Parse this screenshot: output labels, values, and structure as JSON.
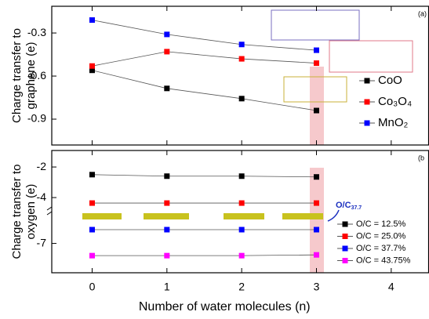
{
  "chart_data": [
    {
      "type": "line",
      "panel_label": "(a)",
      "ylabel": [
        "Charge transfer to",
        "graphene (e)"
      ],
      "x": [
        0,
        1,
        2,
        3
      ],
      "xlim": [
        -0.54,
        4.5
      ],
      "xticks": [
        0,
        1,
        2,
        3,
        4
      ],
      "ylim": [
        -1.08,
        -0.114
      ],
      "yticks": [
        -0.3,
        -0.6,
        -0.9
      ],
      "series": [
        {
          "name": "CoO",
          "color": "#000000",
          "values": [
            -0.56,
            -0.686,
            -0.757,
            -0.84
          ]
        },
        {
          "name": "Co₃O₄",
          "color": "#ff0000",
          "values": [
            -0.53,
            -0.43,
            -0.48,
            -0.51
          ]
        },
        {
          "name": "MnO₂",
          "color": "#0000ff",
          "values": [
            -0.21,
            -0.31,
            -0.38,
            -0.42
          ]
        }
      ]
    },
    {
      "type": "line",
      "panel_label": "(b",
      "ylabel": [
        "Charge transfer to",
        "oxygen (e)"
      ],
      "xlabel": "Number of water molecules (n)",
      "annotation": {
        "text": "O/C",
        "subscript": "37.7"
      },
      "x": [
        0,
        1,
        2,
        3
      ],
      "xlim": [
        -0.54,
        4.5
      ],
      "xticks": [
        0,
        1,
        2,
        3,
        4
      ],
      "ylim": [
        -8.92,
        -0.92
      ],
      "yticks": [
        -2,
        -4,
        -7
      ],
      "series": [
        {
          "name": "O/C = 12.5%",
          "color": "#000000",
          "values": [
            -2.5,
            -2.6,
            -2.6,
            -2.65
          ]
        },
        {
          "name": "O/C = 25.0%",
          "color": "#ff0000",
          "values": [
            -4.36,
            -4.36,
            -4.36,
            -4.36
          ]
        },
        {
          "name": "O/C = 37.7%",
          "color": "#0000ff",
          "values": [
            -6.1,
            -6.1,
            -6.1,
            -6.1
          ]
        },
        {
          "name": "O/C = 43.75%",
          "color": "#ff00ff",
          "values": [
            -7.8,
            -7.8,
            -7.8,
            -7.75
          ]
        }
      ]
    }
  ]
}
